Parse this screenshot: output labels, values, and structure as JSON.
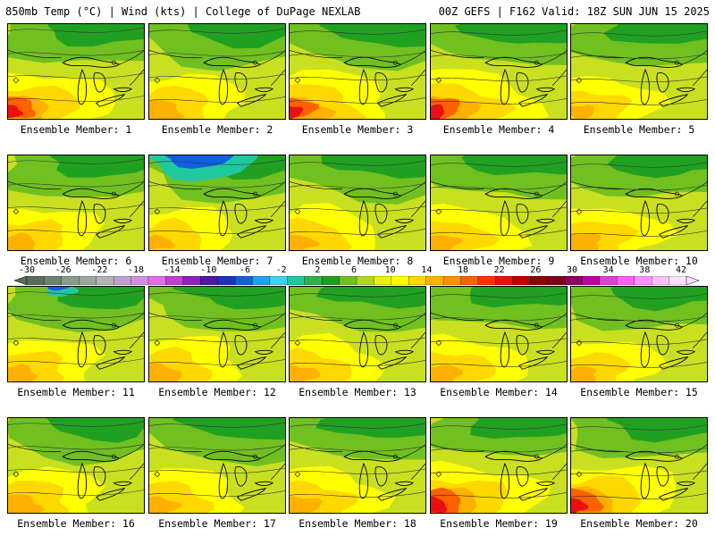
{
  "header": {
    "left": "850mb Temp (°C) | Wind (kts) | College of DuPage NEXLAB",
    "right": "00Z GEFS | F162 Valid: 18Z SUN JUN 15 2025"
  },
  "members": [
    {
      "label": "Ensemble Member: 1",
      "warm": 0.75,
      "cold": 0.0
    },
    {
      "label": "Ensemble Member: 2",
      "warm": 0.55,
      "cold": 0.0
    },
    {
      "label": "Ensemble Member: 3",
      "warm": 0.7,
      "cold": 0.0
    },
    {
      "label": "Ensemble Member: 4",
      "warm": 0.8,
      "cold": 0.0
    },
    {
      "label": "Ensemble Member: 5",
      "warm": 0.35,
      "cold": 0.0
    },
    {
      "label": "Ensemble Member: 6",
      "warm": 0.45,
      "cold": 0.0
    },
    {
      "label": "Ensemble Member: 7",
      "warm": 0.35,
      "cold": 1.0
    },
    {
      "label": "Ensemble Member: 8",
      "warm": 0.4,
      "cold": 0.0
    },
    {
      "label": "Ensemble Member: 9",
      "warm": 0.45,
      "cold": 0.0
    },
    {
      "label": "Ensemble Member: 10",
      "warm": 0.5,
      "cold": 0.0
    },
    {
      "label": "Ensemble Member: 11",
      "warm": 0.45,
      "cold": 0.3
    },
    {
      "label": "Ensemble Member: 12",
      "warm": 0.5,
      "cold": 0.0
    },
    {
      "label": "Ensemble Member: 13",
      "warm": 0.45,
      "cold": 0.0
    },
    {
      "label": "Ensemble Member: 14",
      "warm": 0.5,
      "cold": 0.0
    },
    {
      "label": "Ensemble Member: 15",
      "warm": 0.4,
      "cold": 0.0
    },
    {
      "label": "Ensemble Member: 16",
      "warm": 0.55,
      "cold": 0.0
    },
    {
      "label": "Ensemble Member: 17",
      "warm": 0.45,
      "cold": 0.0
    },
    {
      "label": "Ensemble Member: 18",
      "warm": 0.5,
      "cold": 0.0
    },
    {
      "label": "Ensemble Member: 19",
      "warm": 0.9,
      "cold": 0.0
    },
    {
      "label": "Ensemble Member: 20",
      "warm": 0.85,
      "cold": 0.0
    }
  ],
  "colorbar": {
    "ticks": [
      "-30",
      "-26",
      "-22",
      "-18",
      "-14",
      "-10",
      "-6",
      "-2",
      "2",
      "6",
      "10",
      "14",
      "18",
      "22",
      "26",
      "30",
      "34",
      "38",
      "42"
    ],
    "colors": [
      "#5a6b5a",
      "#6f806f",
      "#889a88",
      "#9aa69a",
      "#b3b3b3",
      "#c0a0d0",
      "#d090e0",
      "#e070e0",
      "#c040d0",
      "#9020c0",
      "#5018a0",
      "#2030c0",
      "#1060e0",
      "#20a0f0",
      "#40d0f0",
      "#20c8a0",
      "#30b050",
      "#20a020",
      "#70c020",
      "#b0d820",
      "#e8f010",
      "#ffff00",
      "#ffd800",
      "#ffb000",
      "#ff9000",
      "#ff6000",
      "#ff3000",
      "#e81010",
      "#c00000",
      "#900000",
      "#800020",
      "#900060",
      "#c000a0",
      "#e040d0",
      "#ff60f0",
      "#ff90ff",
      "#ffc0ff",
      "#ffe0ff"
    ]
  }
}
